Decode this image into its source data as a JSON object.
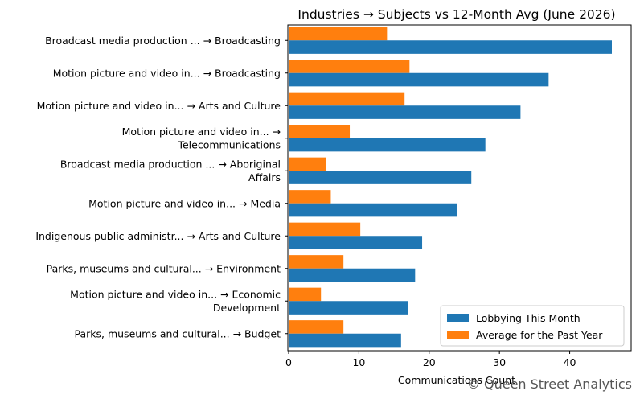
{
  "chart_data": {
    "type": "bar",
    "orientation": "horizontal",
    "title": "Industries → Subjects vs 12-Month Avg (June 2026)",
    "xlabel": "Communications Count",
    "ylabel": "",
    "xlim": [
      0,
      48
    ],
    "xticks": [
      0,
      10,
      20,
      30,
      40
    ],
    "grid": false,
    "legend_position": "lower-right",
    "categories": [
      [
        "Broadcast media production ... → Broadcasting"
      ],
      [
        "Motion picture and video in... → Broadcasting"
      ],
      [
        "Motion picture and video in... → Arts and Culture"
      ],
      [
        "Motion picture and video in... →",
        "Telecommunications"
      ],
      [
        "Broadcast media production ... → Aboriginal",
        "Affairs"
      ],
      [
        "Motion picture and video in... → Media"
      ],
      [
        "Indigenous public administr... → Arts and Culture"
      ],
      [
        "Parks, museums and cultural... → Environment"
      ],
      [
        "Motion picture and video in... → Economic",
        "Development"
      ],
      [
        "Parks, museums and cultural... → Budget"
      ]
    ],
    "series": [
      {
        "name": "Lobbying This Month",
        "color": "#1f77b4",
        "values": [
          46,
          37,
          33,
          28,
          26,
          24,
          19,
          18,
          17,
          16
        ]
      },
      {
        "name": "Average for the Past Year",
        "color": "#ff7f0e",
        "values": [
          14,
          17.2,
          16.5,
          8.7,
          5.3,
          6,
          10.2,
          7.8,
          4.6,
          7.8
        ]
      }
    ]
  },
  "watermark": "© Queen Street Analytics"
}
